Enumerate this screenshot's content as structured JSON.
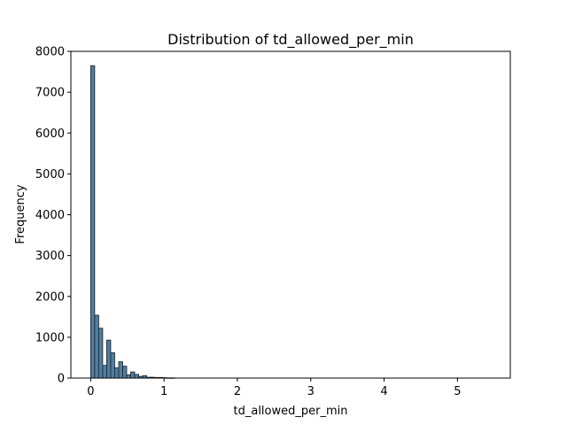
{
  "chart_data": {
    "type": "bar",
    "title": "Distribution of td_allowed_per_min",
    "xlabel": "td_allowed_per_min",
    "ylabel": "Frequency",
    "xlim": [
      -0.27,
      5.72
    ],
    "ylim": [
      0,
      8000
    ],
    "xticks": [
      0,
      1,
      2,
      3,
      4,
      5
    ],
    "yticks": [
      0,
      1000,
      2000,
      3000,
      4000,
      5000,
      6000,
      7000,
      8000
    ],
    "bar_color": "#4d7fa5",
    "edge_color": "#1a1a1a",
    "bin_width": 0.0545,
    "bins_start": [
      0.0,
      0.0545,
      0.109,
      0.1635,
      0.218,
      0.2725,
      0.327,
      0.3815,
      0.436,
      0.4905,
      0.545,
      0.5995,
      0.654,
      0.7085,
      0.763,
      0.8175,
      0.872,
      0.9265,
      0.981,
      1.0355,
      1.09
    ],
    "values": [
      7650,
      1540,
      1220,
      310,
      930,
      620,
      250,
      400,
      290,
      80,
      150,
      90,
      40,
      60,
      20,
      20,
      15,
      15,
      10,
      5,
      5
    ]
  }
}
